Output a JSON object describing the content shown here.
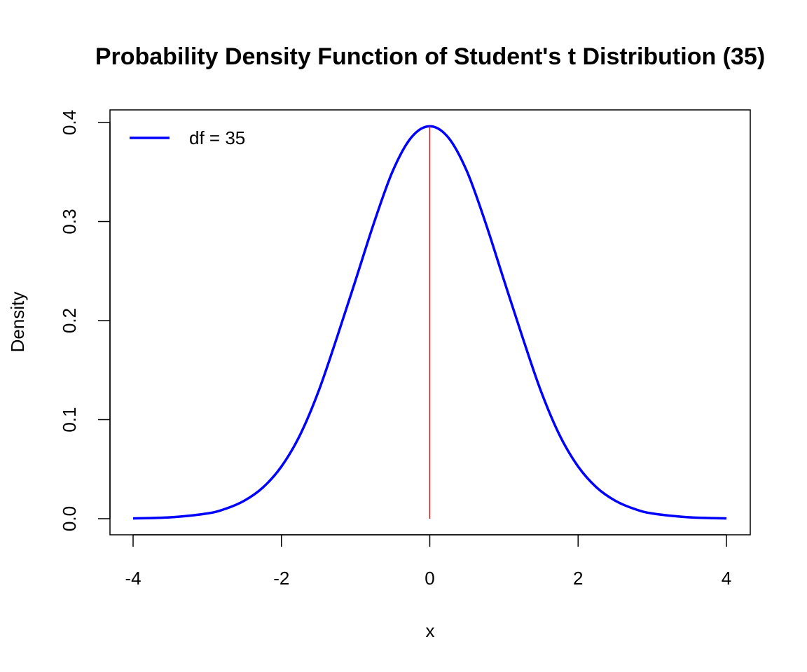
{
  "chart_data": {
    "type": "line",
    "title": "Probability Density Function of Student's t Distribution (35)",
    "xlabel": "x",
    "ylabel": "Density",
    "xlim": [
      -4,
      4
    ],
    "ylim": [
      0,
      0.4
    ],
    "x_ticks": [
      -4,
      -2,
      0,
      2,
      4
    ],
    "y_ticks": [
      0.0,
      0.1,
      0.2,
      0.3,
      0.4
    ],
    "x_tick_labels": [
      "-4",
      "-2",
      "0",
      "2",
      "4"
    ],
    "y_tick_labels": [
      "0.0",
      "0.1",
      "0.2",
      "0.3",
      "0.4"
    ],
    "grid": false,
    "legend": {
      "position": "top-left",
      "entries": [
        {
          "label": "df = 35",
          "color": "#0000ff"
        }
      ]
    },
    "series": [
      {
        "name": "df = 35",
        "color": "#0000ff",
        "x": [
          -4,
          -3.5,
          -3,
          -2.75,
          -2.5,
          -2.25,
          -2,
          -1.75,
          -1.5,
          -1.25,
          -1,
          -0.75,
          -0.5,
          -0.25,
          0,
          0.25,
          0.5,
          0.75,
          1,
          1.25,
          1.5,
          1.75,
          2,
          2.25,
          2.5,
          2.75,
          3,
          3.5,
          4
        ],
        "y": [
          0.0003,
          0.0014,
          0.0053,
          0.0101,
          0.0182,
          0.0315,
          0.0527,
          0.0844,
          0.1286,
          0.1833,
          0.2409,
          0.2992,
          0.3509,
          0.3848,
          0.3962,
          0.3848,
          0.3509,
          0.2992,
          0.2409,
          0.1833,
          0.1286,
          0.0844,
          0.0527,
          0.0315,
          0.0182,
          0.0101,
          0.0053,
          0.0014,
          0.0003
        ]
      }
    ],
    "reference_line": {
      "x": 0,
      "y_from": 0,
      "y_to": 0.3962,
      "color": "#ff0000"
    }
  }
}
